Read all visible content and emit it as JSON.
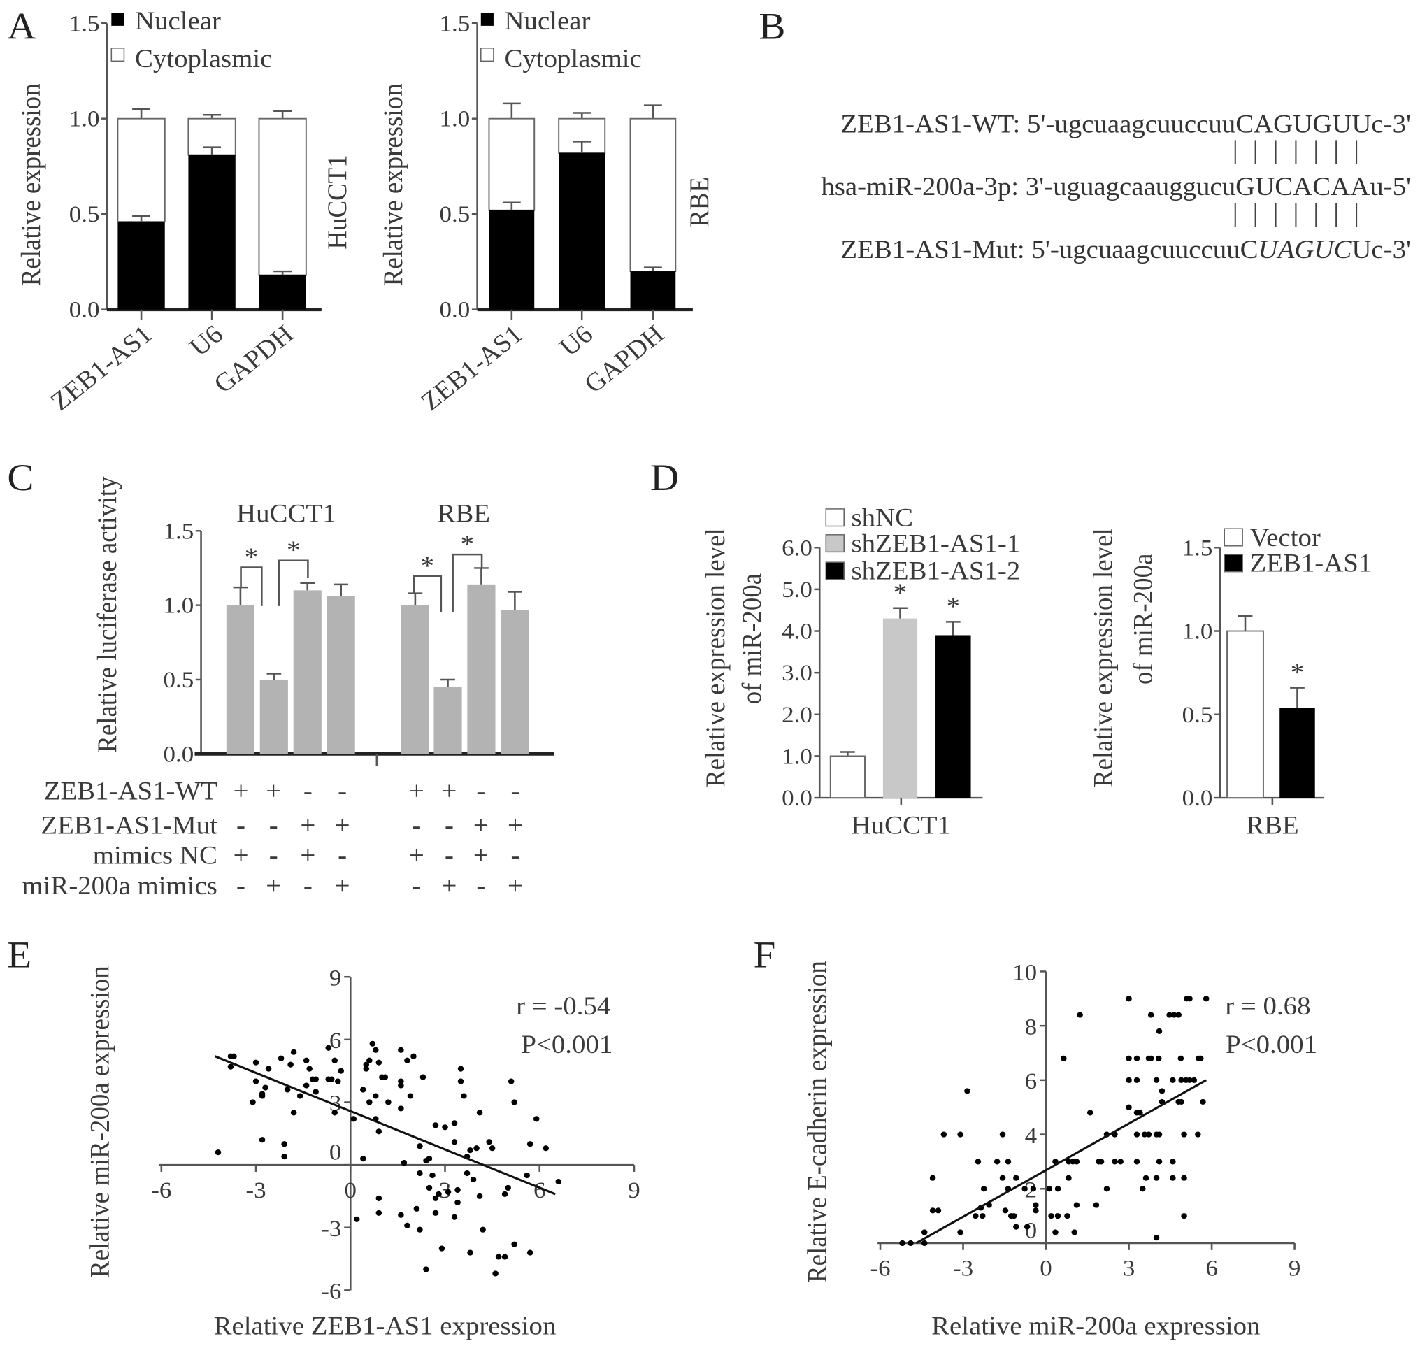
{
  "panels": {
    "A": "A",
    "B": "B",
    "C": "C",
    "D": "D",
    "E": "E",
    "F": "F"
  },
  "panel_B": {
    "wt": {
      "label": "ZEB1-AS1-WT:",
      "prefix": " 5'-ugcuaagcuuccuu",
      "seed": "CAGUGUU",
      "suffix": "c-3'"
    },
    "mir": {
      "label": "hsa-miR-200a-3p:",
      "prefix": " 3'-uguagcaauggucu",
      "seed": "GUCACAA",
      "suffix": "u-5'"
    },
    "mut": {
      "label": "ZEB1-AS1-Mut:",
      "prefix": " 5'-ugcuaagcuuccuuC",
      "mutated": "UAGUC",
      "suffix": "Uc-3'"
    },
    "pairing_marks": 7
  },
  "panel_C_conditions": {
    "rows": [
      {
        "label": "ZEB1-AS1-WT",
        "signs": [
          "+",
          "+",
          "-",
          "-",
          "+",
          "+",
          "-",
          "-"
        ]
      },
      {
        "label": "ZEB1-AS1-Mut",
        "signs": [
          "-",
          "-",
          "+",
          "+",
          "-",
          "-",
          "+",
          "+"
        ]
      },
      {
        "label": "mimics NC",
        "signs": [
          "+",
          "-",
          "+",
          "-",
          "+",
          "-",
          "+",
          "-"
        ]
      },
      {
        "label": "miR-200a mimics",
        "signs": [
          "-",
          "+",
          "-",
          "+",
          "-",
          "+",
          "-",
          "+"
        ]
      }
    ],
    "significance_mark": "*"
  },
  "chart_data": [
    {
      "id": "A-HuCCT1",
      "type": "bar",
      "stacked": true,
      "title": "HuCCT1",
      "ylabel": "Relative expression",
      "xlabel": "",
      "categories": [
        "ZEB1-AS1",
        "U6",
        "GAPDH"
      ],
      "ylim": [
        0,
        1.5
      ],
      "yticks": [
        0.0,
        0.5,
        1.0,
        1.5
      ],
      "series": [
        {
          "name": "Nuclear",
          "values": [
            0.46,
            0.81,
            0.18
          ],
          "error_top": [
            0.49,
            0.85,
            0.2
          ],
          "color": "#000000"
        },
        {
          "name": "Cytoplasmic",
          "values": [
            0.54,
            0.19,
            0.82
          ],
          "error_top": [
            1.05,
            1.02,
            1.04
          ],
          "color": "#ffffff"
        }
      ],
      "legend": "top-left"
    },
    {
      "id": "A-RBE",
      "type": "bar",
      "stacked": true,
      "title": "RBE",
      "ylabel": "Relative expression",
      "xlabel": "",
      "categories": [
        "ZEB1-AS1",
        "U6",
        "GAPDH"
      ],
      "ylim": [
        0,
        1.5
      ],
      "yticks": [
        0.0,
        0.5,
        1.0,
        1.5
      ],
      "series": [
        {
          "name": "Nuclear",
          "values": [
            0.52,
            0.82,
            0.2
          ],
          "error_top": [
            0.56,
            0.88,
            0.22
          ],
          "color": "#000000"
        },
        {
          "name": "Cytoplasmic",
          "values": [
            0.48,
            0.18,
            0.8
          ],
          "error_top": [
            1.08,
            1.03,
            1.07
          ],
          "color": "#ffffff"
        }
      ],
      "legend": "top-left"
    },
    {
      "id": "C",
      "type": "bar",
      "ylabel": "Relative luciferase activity",
      "groups": [
        {
          "name": "HuCCT1",
          "values": [
            1.0,
            0.5,
            1.1,
            1.06
          ],
          "error_top": [
            1.12,
            0.54,
            1.15,
            1.14
          ]
        },
        {
          "name": "RBE",
          "values": [
            1.0,
            0.45,
            1.14,
            0.97
          ],
          "error_top": [
            1.08,
            0.5,
            1.25,
            1.09
          ]
        }
      ],
      "ylim": [
        0,
        1.5
      ],
      "yticks": [
        0.0,
        0.5,
        1.0,
        1.5
      ],
      "color": "#b3b3b3"
    },
    {
      "id": "D-HuCCT1",
      "type": "bar",
      "ylabel": [
        "Relative expression level",
        "of miR-200a"
      ],
      "xlabel": "HuCCT1",
      "categories": [
        "shNC",
        "shZEB1-AS1-1",
        "shZEB1-AS1-2"
      ],
      "values": [
        1.0,
        4.3,
        3.9
      ],
      "error_top": [
        1.1,
        4.55,
        4.22
      ],
      "significant": [
        false,
        true,
        true
      ],
      "colors": [
        "#ffffff",
        "#c8c8c8",
        "#000000"
      ],
      "ylim": [
        0,
        6
      ],
      "yticks": [
        0.0,
        1.0,
        2.0,
        3.0,
        4.0,
        5.0,
        6.0
      ],
      "legend": "top-left"
    },
    {
      "id": "D-RBE",
      "type": "bar",
      "ylabel": [
        "Relative expression level",
        "of miR-200a"
      ],
      "xlabel": "RBE",
      "categories": [
        "Vector",
        "ZEB1-AS1"
      ],
      "values": [
        1.0,
        0.54
      ],
      "error_top": [
        1.09,
        0.66
      ],
      "significant": [
        false,
        true
      ],
      "colors": [
        "#ffffff",
        "#000000"
      ],
      "ylim": [
        0,
        1.5
      ],
      "yticks": [
        0.0,
        0.5,
        1.0,
        1.5
      ],
      "legend": "top-left"
    },
    {
      "id": "E",
      "type": "scatter",
      "xlabel": "Relative ZEB1-AS1 expression",
      "ylabel": "Relative miR-200a expression",
      "xlim": [
        -6,
        9
      ],
      "ylim": [
        -6,
        9
      ],
      "xticks": [
        -6,
        -3,
        0,
        3,
        6,
        9
      ],
      "yticks": [
        -6,
        -3,
        0,
        3,
        6,
        9
      ],
      "r_text": "r = -0.54",
      "p_text": "P<0.001",
      "fit_line": [
        [
          -4.3,
          5.2
        ],
        [
          6.5,
          -1.4
        ]
      ],
      "points": [
        [
          -4.2,
          0.6
        ],
        [
          -3.8,
          5.2
        ],
        [
          -3.7,
          5.2
        ],
        [
          -3.8,
          4.7
        ],
        [
          -3.0,
          4.9
        ],
        [
          -2.6,
          4.6
        ],
        [
          -2.2,
          5.1
        ],
        [
          -1.8,
          5.4
        ],
        [
          -1.9,
          4.8
        ],
        [
          -1.4,
          5.0
        ],
        [
          -1.3,
          4.6
        ],
        [
          -3.0,
          4.0
        ],
        [
          -2.7,
          3.7
        ],
        [
          -2.8,
          3.4
        ],
        [
          -2.8,
          3.3
        ],
        [
          -3.1,
          3.0
        ],
        [
          -2.0,
          3.6
        ],
        [
          -1.6,
          3.3
        ],
        [
          -1.4,
          3.8
        ],
        [
          -1.2,
          4.1
        ],
        [
          -1.1,
          4.1
        ],
        [
          -1.1,
          3.5
        ],
        [
          -1.8,
          2.5
        ],
        [
          -0.7,
          5.6
        ],
        [
          -0.5,
          5.0
        ],
        [
          -0.7,
          4.1
        ],
        [
          -0.6,
          4.1
        ],
        [
          -0.4,
          4.0
        ],
        [
          -0.3,
          4.5
        ],
        [
          -0.5,
          2.5
        ],
        [
          -2.8,
          1.2
        ],
        [
          -2.1,
          1.0
        ],
        [
          -2.1,
          0.4
        ],
        [
          0.1,
          2.2
        ],
        [
          0.4,
          0.3
        ],
        [
          0.4,
          3.6
        ],
        [
          0.5,
          4.8
        ],
        [
          0.5,
          4.6
        ],
        [
          0.6,
          5.0
        ],
        [
          0.7,
          5.8
        ],
        [
          0.8,
          5.5
        ],
        [
          0.9,
          4.9
        ],
        [
          1.0,
          4.2
        ],
        [
          1.1,
          4.2
        ],
        [
          0.6,
          3.0
        ],
        [
          0.8,
          3.3
        ],
        [
          1.2,
          3.0
        ],
        [
          0.8,
          2.2
        ],
        [
          0.9,
          1.6
        ],
        [
          1.6,
          5.5
        ],
        [
          1.6,
          4.0
        ],
        [
          1.6,
          3.8
        ],
        [
          1.8,
          5.0
        ],
        [
          2.0,
          5.2
        ],
        [
          1.9,
          3.3
        ],
        [
          1.6,
          2.7
        ],
        [
          2.3,
          4.2
        ],
        [
          2.2,
          0.9
        ],
        [
          1.7,
          0.1
        ],
        [
          2.4,
          0.2
        ],
        [
          2.5,
          0.3
        ],
        [
          2.7,
          1.9
        ],
        [
          3.0,
          1.8
        ],
        [
          3.3,
          2.0
        ],
        [
          3.3,
          1.1
        ],
        [
          3.5,
          4.6
        ],
        [
          3.5,
          4.0
        ],
        [
          3.6,
          3.3
        ],
        [
          4.1,
          2.5
        ],
        [
          3.8,
          0.7
        ],
        [
          4.0,
          0.8
        ],
        [
          3.7,
          0.4
        ],
        [
          4.4,
          1.1
        ],
        [
          4.5,
          0.8
        ],
        [
          5.1,
          4.0
        ],
        [
          5.2,
          3.0
        ],
        [
          5.9,
          2.2
        ],
        [
          5.7,
          1.0
        ],
        [
          6.2,
          0.8
        ],
        [
          2.2,
          -0.4
        ],
        [
          2.6,
          -0.5
        ],
        [
          2.5,
          -1.1
        ],
        [
          2.8,
          -1.4
        ],
        [
          2.7,
          -1.6
        ],
        [
          3.1,
          -1.3
        ],
        [
          3.4,
          -1.2
        ],
        [
          3.4,
          -1.8
        ],
        [
          3.7,
          -0.4
        ],
        [
          3.9,
          -0.7
        ],
        [
          4.1,
          -1.5
        ],
        [
          4.9,
          -1.4
        ],
        [
          5.0,
          -1.1
        ],
        [
          5.6,
          -0.5
        ],
        [
          6.6,
          -0.8
        ],
        [
          0.9,
          -1.6
        ],
        [
          0.9,
          -2.3
        ],
        [
          0.2,
          -2.6
        ],
        [
          1.6,
          -2.4
        ],
        [
          1.8,
          -2.9
        ],
        [
          2.1,
          -2.1
        ],
        [
          2.2,
          -3.1
        ],
        [
          2.7,
          -2.3
        ],
        [
          3.3,
          -2.5
        ],
        [
          4.2,
          -3.1
        ],
        [
          2.9,
          -4.0
        ],
        [
          3.8,
          -4.2
        ],
        [
          5.2,
          -3.8
        ],
        [
          4.7,
          -4.4
        ],
        [
          4.9,
          -4.4
        ],
        [
          5.7,
          -4.2
        ],
        [
          2.4,
          -5.0
        ],
        [
          4.6,
          -5.2
        ]
      ]
    },
    {
      "id": "F",
      "type": "scatter",
      "xlabel": "Relative miR-200a expression",
      "ylabel": "Relative E-cadherin expression",
      "xlim": [
        -6,
        9
      ],
      "ylim": [
        0,
        10
      ],
      "xticks": [
        -6,
        -3,
        0,
        3,
        6,
        9
      ],
      "yticks": [
        0,
        2,
        4,
        6,
        8,
        10
      ],
      "r_text": "r = 0.68",
      "p_text": "P<0.001",
      "fit_line": [
        [
          -4.7,
          0.0
        ],
        [
          5.8,
          6.0
        ]
      ],
      "points": [
        [
          -5.2,
          0
        ],
        [
          -4.9,
          0
        ],
        [
          -4.4,
          0.4
        ],
        [
          -4.4,
          0.0
        ],
        [
          -4.1,
          1.2
        ],
        [
          -3.9,
          1.2
        ],
        [
          -4.1,
          2.4
        ],
        [
          -3.7,
          4.0
        ],
        [
          -3.1,
          4.0
        ],
        [
          -3.1,
          0.4
        ],
        [
          -2.85,
          5.6
        ],
        [
          -2.55,
          1.0
        ],
        [
          -2.3,
          1.0
        ],
        [
          -2.46,
          3.0
        ],
        [
          -2.36,
          1.3
        ],
        [
          -2.25,
          2.0
        ],
        [
          -2.06,
          1.4
        ],
        [
          -1.77,
          3.0
        ],
        [
          -1.57,
          2.4
        ],
        [
          -1.57,
          4.0
        ],
        [
          -1.47,
          1.2
        ],
        [
          -1.37,
          2.0
        ],
        [
          -1.37,
          3.0
        ],
        [
          -1.26,
          1.0
        ],
        [
          -1.16,
          1.0
        ],
        [
          -1.08,
          2.4
        ],
        [
          -1.08,
          0.6
        ],
        [
          -0.68,
          0.6
        ],
        [
          -0.77,
          2.0
        ],
        [
          -0.46,
          2.0
        ],
        [
          -0.37,
          1.4
        ],
        [
          -0.37,
          1.2
        ],
        [
          0.12,
          2.0
        ],
        [
          0.43,
          2.0
        ],
        [
          0.19,
          1.0
        ],
        [
          0.43,
          1.0
        ],
        [
          0.77,
          1.0
        ],
        [
          0.34,
          0.4
        ],
        [
          1.03,
          0.4
        ],
        [
          0.34,
          3.0
        ],
        [
          0.82,
          3.0
        ],
        [
          0.97,
          3.0
        ],
        [
          1.11,
          3.0
        ],
        [
          0.82,
          2.4
        ],
        [
          1.11,
          1.4
        ],
        [
          0.64,
          6.8
        ],
        [
          1.23,
          8.4
        ],
        [
          1.6,
          4.8
        ],
        [
          1.82,
          1.4
        ],
        [
          1.91,
          3.0
        ],
        [
          2.0,
          3.0
        ],
        [
          2.2,
          2.0
        ],
        [
          2.2,
          4.0
        ],
        [
          2.49,
          4.0
        ],
        [
          2.49,
          3.0
        ],
        [
          2.7,
          3.0
        ],
        [
          3.0,
          9.0
        ],
        [
          3.0,
          6.8
        ],
        [
          3.29,
          6.8
        ],
        [
          3.0,
          6.0
        ],
        [
          3.29,
          6.0
        ],
        [
          3.0,
          5.0
        ],
        [
          3.29,
          4.8
        ],
        [
          3.4,
          4.8
        ],
        [
          3.29,
          4.0
        ],
        [
          3.57,
          4.0
        ],
        [
          3.72,
          4.0
        ],
        [
          3.29,
          3.0
        ],
        [
          3.5,
          2.0
        ],
        [
          3.62,
          2.4
        ],
        [
          4.0,
          2.4
        ],
        [
          3.72,
          6.8
        ],
        [
          3.8,
          6.8
        ],
        [
          4.08,
          6.8
        ],
        [
          3.8,
          8.4
        ],
        [
          4.1,
          7.8
        ],
        [
          4.0,
          6.0
        ],
        [
          4.0,
          4.0
        ],
        [
          4.1,
          4.0
        ],
        [
          4.1,
          3.0
        ],
        [
          4.2,
          5.6
        ],
        [
          4.2,
          5.2
        ],
        [
          4.0,
          0.2
        ],
        [
          4.47,
          8.4
        ],
        [
          4.64,
          8.4
        ],
        [
          4.8,
          8.4
        ],
        [
          4.59,
          6.0
        ],
        [
          4.59,
          3.0
        ],
        [
          4.59,
          2.4
        ],
        [
          4.8,
          5.2
        ],
        [
          4.9,
          5.2
        ],
        [
          4.88,
          6.8
        ],
        [
          4.9,
          6.0
        ],
        [
          5.07,
          6.0
        ],
        [
          5.2,
          6.0
        ],
        [
          5.36,
          6.0
        ],
        [
          5.0,
          4.0
        ],
        [
          5.0,
          2.4
        ],
        [
          5.0,
          1.0
        ],
        [
          5.1,
          9.0
        ],
        [
          5.2,
          9.0
        ],
        [
          5.53,
          6.8
        ],
        [
          5.6,
          6.8
        ],
        [
          5.5,
          4.0
        ],
        [
          5.68,
          5.2
        ],
        [
          5.8,
          9.0
        ]
      ]
    }
  ]
}
